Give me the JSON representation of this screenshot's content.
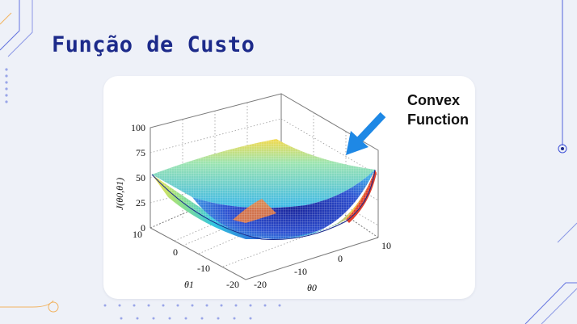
{
  "slide": {
    "title": "Função de Custo",
    "accent_color": "#1c2a8a",
    "decoration_color": "#2a3fd4"
  },
  "figure": {
    "annotation_line1": "Convex",
    "annotation_line2": "Function",
    "arrow_color": "#1e88e5",
    "z_axis_label": "J(θ0,θ1)",
    "z_ticks": [
      "100",
      "75",
      "50",
      "25",
      "0"
    ],
    "theta1_ticks": [
      "10",
      "0",
      "-10",
      "-20"
    ],
    "theta0_ticks": [
      "-20",
      "-10",
      "0",
      "10"
    ],
    "theta1_label": "θ1",
    "theta0_label": "θ0",
    "surface": "convex-bowl-mesh",
    "colormap": "jet"
  }
}
